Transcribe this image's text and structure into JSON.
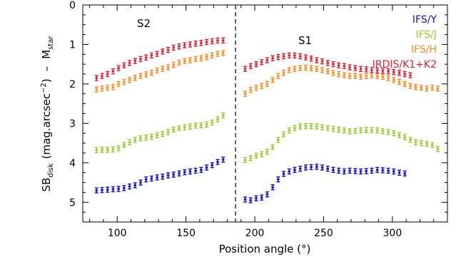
{
  "chart_data": {
    "type": "scatter",
    "title": "",
    "xlabel": "Position angle (°)",
    "ylabel": "SB_disk (mag.arcsec^-2) – M_star",
    "ylabel_parts": {
      "sb": "SB",
      "disk": "disk",
      "unit_a": "(mag.arcsec",
      "exp": "−2",
      "unit_b": ")",
      "minus": "–",
      "m": "M",
      "star": "star"
    },
    "xlim": [
      75,
      340
    ],
    "ylim": [
      5.5,
      0
    ],
    "inverted_y": true,
    "xticks": [
      100,
      150,
      200,
      250,
      300
    ],
    "yticks": [
      0,
      1,
      2,
      3,
      4,
      5
    ],
    "xtick_labels": [
      "100",
      "150",
      "200",
      "250",
      "300"
    ],
    "ytick_labels": [
      "0",
      "1",
      "2",
      "3",
      "4",
      "5"
    ],
    "grid": false,
    "legend_position": "top-right",
    "annotations": [
      {
        "text": "S2",
        "x": 120,
        "y": 0.75
      },
      {
        "text": "S1",
        "x": 250,
        "y": 1.25
      }
    ],
    "vline": {
      "x": 186,
      "style": "dashed"
    },
    "series": [
      {
        "name": "IFS/Y",
        "color": "#1010d0",
        "points": [
          [
            85,
            4.7
          ],
          [
            89,
            4.69
          ],
          [
            93,
            4.68
          ],
          [
            97,
            4.67
          ],
          [
            101,
            4.66
          ],
          [
            105,
            4.64
          ],
          [
            109,
            4.6
          ],
          [
            113,
            4.57
          ],
          [
            117,
            4.5
          ],
          [
            121,
            4.42
          ],
          [
            125,
            4.4
          ],
          [
            129,
            4.37
          ],
          [
            133,
            4.35
          ],
          [
            137,
            4.32
          ],
          [
            141,
            4.3
          ],
          [
            145,
            4.27
          ],
          [
            149,
            4.24
          ],
          [
            153,
            4.22
          ],
          [
            157,
            4.2
          ],
          [
            161,
            4.18
          ],
          [
            165,
            4.12
          ],
          [
            169,
            4.06
          ],
          [
            173,
            3.98
          ],
          [
            177,
            3.92
          ],
          [
            193,
            4.93
          ],
          [
            197,
            4.95
          ],
          [
            201,
            4.9
          ],
          [
            205,
            4.88
          ],
          [
            209,
            4.8
          ],
          [
            213,
            4.62
          ],
          [
            217,
            4.42
          ],
          [
            221,
            4.28
          ],
          [
            225,
            4.22
          ],
          [
            229,
            4.18
          ],
          [
            233,
            4.15
          ],
          [
            237,
            4.12
          ],
          [
            241,
            4.11
          ],
          [
            245,
            4.1
          ],
          [
            249,
            4.12
          ],
          [
            253,
            4.15
          ],
          [
            257,
            4.18
          ],
          [
            261,
            4.2
          ],
          [
            265,
            4.22
          ],
          [
            269,
            4.2
          ],
          [
            273,
            4.21
          ],
          [
            277,
            4.22
          ],
          [
            281,
            4.21
          ],
          [
            285,
            4.2
          ],
          [
            289,
            4.18
          ],
          [
            293,
            4.19
          ],
          [
            297,
            4.2
          ],
          [
            301,
            4.22
          ],
          [
            305,
            4.25
          ],
          [
            309,
            4.27
          ]
        ]
      },
      {
        "name": "IFS/J",
        "color": "#99cc33",
        "points": [
          [
            85,
            3.68
          ],
          [
            89,
            3.67
          ],
          [
            93,
            3.67
          ],
          [
            97,
            3.66
          ],
          [
            101,
            3.63
          ],
          [
            105,
            3.55
          ],
          [
            109,
            3.48
          ],
          [
            113,
            3.42
          ],
          [
            117,
            3.38
          ],
          [
            121,
            3.36
          ],
          [
            125,
            3.34
          ],
          [
            129,
            3.3
          ],
          [
            133,
            3.27
          ],
          [
            137,
            3.22
          ],
          [
            141,
            3.16
          ],
          [
            145,
            3.12
          ],
          [
            149,
            3.1
          ],
          [
            153,
            3.08
          ],
          [
            157,
            3.06
          ],
          [
            161,
            3.05
          ],
          [
            165,
            3.03
          ],
          [
            169,
            2.98
          ],
          [
            173,
            2.9
          ],
          [
            177,
            2.8
          ],
          [
            193,
            3.93
          ],
          [
            197,
            3.88
          ],
          [
            201,
            3.82
          ],
          [
            205,
            3.78
          ],
          [
            209,
            3.72
          ],
          [
            213,
            3.6
          ],
          [
            217,
            3.42
          ],
          [
            221,
            3.28
          ],
          [
            225,
            3.18
          ],
          [
            229,
            3.12
          ],
          [
            233,
            3.08
          ],
          [
            237,
            3.07
          ],
          [
            241,
            3.07
          ],
          [
            245,
            3.08
          ],
          [
            249,
            3.1
          ],
          [
            253,
            3.12
          ],
          [
            257,
            3.14
          ],
          [
            261,
            3.16
          ],
          [
            265,
            3.18
          ],
          [
            269,
            3.2
          ],
          [
            273,
            3.19
          ],
          [
            277,
            3.18
          ],
          [
            281,
            3.17
          ],
          [
            285,
            3.17
          ],
          [
            289,
            3.18
          ],
          [
            293,
            3.2
          ],
          [
            297,
            3.22
          ],
          [
            301,
            3.25
          ],
          [
            305,
            3.3
          ],
          [
            309,
            3.35
          ],
          [
            313,
            3.42
          ],
          [
            317,
            3.48
          ],
          [
            321,
            3.5
          ],
          [
            325,
            3.52
          ],
          [
            329,
            3.55
          ],
          [
            333,
            3.65
          ]
        ]
      },
      {
        "name": "IFS/H",
        "color": "#ff8a1f",
        "points": [
          [
            85,
            2.14
          ],
          [
            89,
            2.12
          ],
          [
            93,
            2.1
          ],
          [
            97,
            2.08
          ],
          [
            101,
            2.0
          ],
          [
            105,
            1.95
          ],
          [
            109,
            1.9
          ],
          [
            113,
            1.85
          ],
          [
            117,
            1.8
          ],
          [
            121,
            1.76
          ],
          [
            125,
            1.72
          ],
          [
            129,
            1.66
          ],
          [
            133,
            1.62
          ],
          [
            137,
            1.58
          ],
          [
            141,
            1.52
          ],
          [
            145,
            1.46
          ],
          [
            149,
            1.42
          ],
          [
            153,
            1.4
          ],
          [
            157,
            1.37
          ],
          [
            161,
            1.35
          ],
          [
            165,
            1.32
          ],
          [
            169,
            1.28
          ],
          [
            173,
            1.24
          ],
          [
            177,
            1.22
          ],
          [
            193,
            2.25
          ],
          [
            197,
            2.15
          ],
          [
            201,
            2.1
          ],
          [
            205,
            2.05
          ],
          [
            209,
            2.0
          ],
          [
            213,
            1.9
          ],
          [
            217,
            1.8
          ],
          [
            221,
            1.72
          ],
          [
            225,
            1.65
          ],
          [
            229,
            1.62
          ],
          [
            233,
            1.6
          ],
          [
            237,
            1.59
          ],
          [
            241,
            1.6
          ],
          [
            245,
            1.62
          ],
          [
            249,
            1.65
          ],
          [
            253,
            1.68
          ],
          [
            257,
            1.72
          ],
          [
            261,
            1.75
          ],
          [
            265,
            1.78
          ],
          [
            269,
            1.8
          ],
          [
            273,
            1.8
          ],
          [
            277,
            1.82
          ],
          [
            281,
            1.8
          ],
          [
            285,
            1.78
          ],
          [
            289,
            1.8
          ],
          [
            293,
            1.82
          ],
          [
            297,
            1.85
          ],
          [
            301,
            1.9
          ],
          [
            305,
            1.95
          ],
          [
            309,
            2.0
          ],
          [
            313,
            2.05
          ],
          [
            317,
            2.08
          ],
          [
            321,
            2.1
          ],
          [
            325,
            2.12
          ],
          [
            329,
            2.1
          ],
          [
            333,
            2.12
          ]
        ]
      },
      {
        "name": "IRDIS/K1+K2",
        "color": "#e02030",
        "points": [
          [
            85,
            1.85
          ],
          [
            89,
            1.8
          ],
          [
            93,
            1.75
          ],
          [
            97,
            1.68
          ],
          [
            101,
            1.6
          ],
          [
            105,
            1.53
          ],
          [
            109,
            1.47
          ],
          [
            113,
            1.42
          ],
          [
            117,
            1.37
          ],
          [
            121,
            1.33
          ],
          [
            125,
            1.28
          ],
          [
            129,
            1.24
          ],
          [
            133,
            1.18
          ],
          [
            137,
            1.14
          ],
          [
            141,
            1.08
          ],
          [
            145,
            1.05
          ],
          [
            149,
            1.02
          ],
          [
            153,
            1.0
          ],
          [
            157,
            0.98
          ],
          [
            161,
            0.96
          ],
          [
            165,
            0.94
          ],
          [
            169,
            0.92
          ],
          [
            173,
            0.9
          ],
          [
            177,
            0.9
          ],
          [
            193,
            1.62
          ],
          [
            197,
            1.55
          ],
          [
            201,
            1.5
          ],
          [
            205,
            1.45
          ],
          [
            209,
            1.4
          ],
          [
            213,
            1.35
          ],
          [
            217,
            1.32
          ],
          [
            221,
            1.3
          ],
          [
            225,
            1.28
          ],
          [
            229,
            1.28
          ],
          [
            233,
            1.3
          ],
          [
            237,
            1.33
          ],
          [
            241,
            1.36
          ],
          [
            245,
            1.4
          ],
          [
            249,
            1.43
          ],
          [
            253,
            1.47
          ],
          [
            257,
            1.5
          ],
          [
            261,
            1.53
          ],
          [
            265,
            1.55
          ],
          [
            269,
            1.58
          ],
          [
            273,
            1.6
          ],
          [
            277,
            1.62
          ],
          [
            281,
            1.63
          ],
          [
            285,
            1.65
          ],
          [
            289,
            1.66
          ],
          [
            293,
            1.67
          ],
          [
            297,
            1.68
          ],
          [
            301,
            1.7
          ],
          [
            305,
            1.72
          ],
          [
            309,
            1.75
          ],
          [
            313,
            1.78
          ]
        ]
      }
    ]
  }
}
